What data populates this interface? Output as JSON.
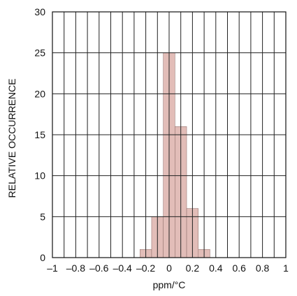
{
  "chart_data": {
    "type": "bar",
    "title": "",
    "xlabel": "ppm/°C",
    "ylabel": "RELATIVE OCCURRENCE",
    "xlim": [
      -1,
      1
    ],
    "ylim": [
      0,
      30
    ],
    "grid": true,
    "bar_color": "#e2bdb8",
    "x_ticks": [
      -1,
      -0.8,
      -0.6,
      -0.4,
      -0.2,
      0,
      0.2,
      0.4,
      0.6,
      0.8,
      1
    ],
    "x_tick_labels": [
      "–1",
      "–0.8",
      "–0.6",
      "–0.4",
      "–0.2",
      "0",
      "0.2",
      "0.4",
      "0.6",
      "0.8",
      "1"
    ],
    "y_ticks": [
      0,
      5,
      10,
      15,
      20,
      25,
      30
    ],
    "y_tick_labels": [
      "0",
      "5",
      "10",
      "15",
      "20",
      "25",
      "30"
    ],
    "bin_width": 0.1,
    "bins": [
      {
        "x_start": -0.25,
        "x_end": -0.15,
        "value": 1
      },
      {
        "x_start": -0.15,
        "x_end": -0.05,
        "value": 5
      },
      {
        "x_start": -0.05,
        "x_end": 0.05,
        "value": 25
      },
      {
        "x_start": 0.05,
        "x_end": 0.15,
        "value": 16
      },
      {
        "x_start": 0.15,
        "x_end": 0.25,
        "value": 6
      },
      {
        "x_start": 0.25,
        "x_end": 0.35,
        "value": 1
      }
    ]
  }
}
